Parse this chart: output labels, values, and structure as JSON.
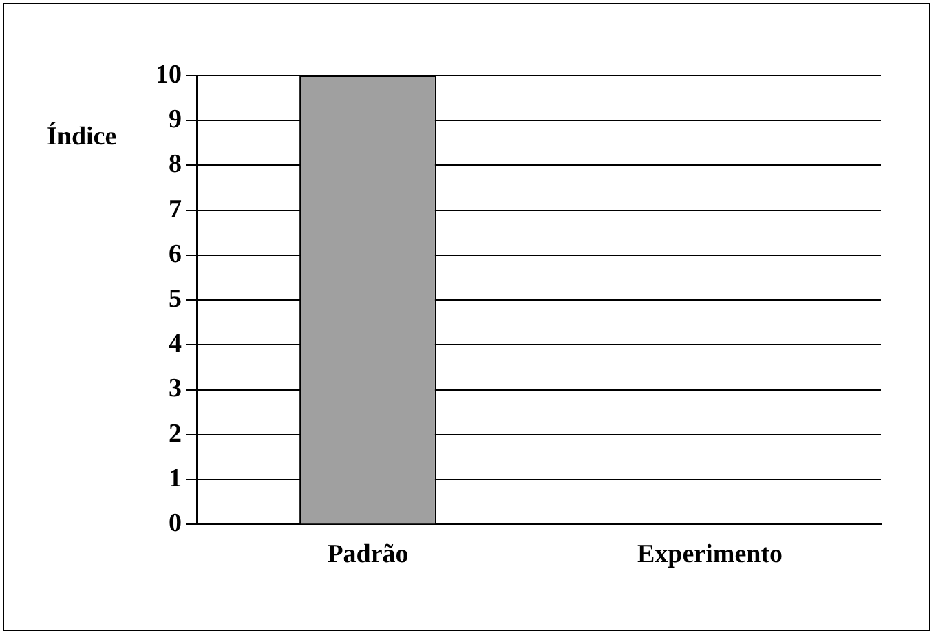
{
  "chart_data": {
    "type": "bar",
    "ylabel": "Índice",
    "categories": [
      "Padrão",
      "Experimento"
    ],
    "values": [
      10,
      0
    ],
    "color": "#a0a0a0",
    "ylim": [
      0,
      10
    ],
    "yticks": [
      0,
      1,
      2,
      3,
      4,
      5,
      6,
      7,
      8,
      9,
      10
    ],
    "grid": "y",
    "legend": false
  }
}
